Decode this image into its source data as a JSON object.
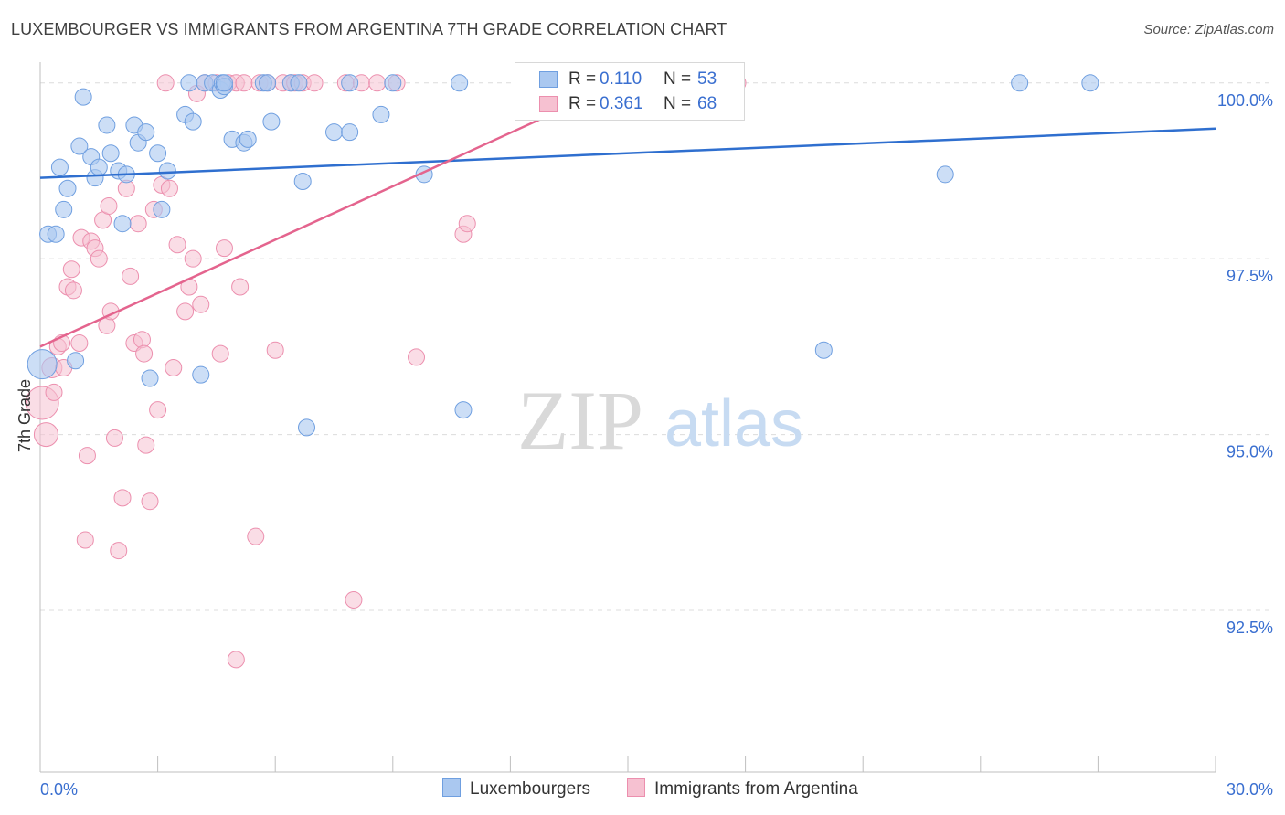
{
  "title": "LUXEMBOURGER VS IMMIGRANTS FROM ARGENTINA 7TH GRADE CORRELATION CHART",
  "source": "Source: ZipAtlas.com",
  "watermark": {
    "zip": "ZIP",
    "atlas": "atlas"
  },
  "colors": {
    "blue_fill": "#aac8f0",
    "blue_stroke": "#6f9fe0",
    "blue_line": "#2f6fcf",
    "pink_fill": "#f6c1d1",
    "pink_stroke": "#ec8fae",
    "pink_line": "#e4648e",
    "tick_label": "#3a6fd0",
    "grid": "#dcdcdc"
  },
  "legend": {
    "rows": [
      {
        "r_label": "R =",
        "r_value": "0.110",
        "n_label": "N =",
        "n_value": "53"
      },
      {
        "r_label": "R =",
        "r_value": "0.361",
        "n_label": "N =",
        "n_value": "68"
      }
    ]
  },
  "bottom_legend": {
    "series1": "Luxembourgers",
    "series2": "Immigrants from Argentina"
  },
  "chart_data": {
    "type": "scatter",
    "title": "LUXEMBOURGER VS IMMIGRANTS FROM ARGENTINA 7TH GRADE CORRELATION CHART",
    "ylabel": "7th Grade",
    "xlabel": "",
    "xlim": [
      0,
      30
    ],
    "ylim": [
      90.2,
      100.4
    ],
    "x_tick_labels": [
      "0.0%",
      "30.0%"
    ],
    "y_ticks": [
      92.5,
      95.0,
      97.5,
      100.0
    ],
    "y_tick_labels": [
      "92.5%",
      "95.0%",
      "97.5%",
      "100.0%"
    ],
    "grid": "horizontal dashed",
    "legend_position": "top-center",
    "series": [
      {
        "name": "Luxembourgers",
        "r": 0.11,
        "n": 53,
        "trend": {
          "x": [
            0,
            30
          ],
          "y": [
            98.65,
            99.35
          ]
        },
        "points": [
          [
            0.05,
            96.0,
            16
          ],
          [
            0.2,
            97.85,
            9
          ],
          [
            0.4,
            97.85,
            9
          ],
          [
            0.5,
            98.8,
            9
          ],
          [
            0.6,
            98.2,
            9
          ],
          [
            0.7,
            98.5,
            9
          ],
          [
            0.9,
            96.05,
            9
          ],
          [
            1.0,
            99.1,
            9
          ],
          [
            1.1,
            99.8,
            9
          ],
          [
            1.3,
            98.95,
            9
          ],
          [
            1.4,
            98.65,
            9
          ],
          [
            1.5,
            98.8,
            9
          ],
          [
            1.7,
            99.4,
            9
          ],
          [
            1.8,
            99.0,
            9
          ],
          [
            2.0,
            98.75,
            9
          ],
          [
            2.1,
            98.0,
            9
          ],
          [
            2.2,
            98.7,
            9
          ],
          [
            2.4,
            99.4,
            9
          ],
          [
            2.5,
            99.15,
            9
          ],
          [
            2.7,
            99.3,
            9
          ],
          [
            2.8,
            95.8,
            9
          ],
          [
            3.0,
            99.0,
            9
          ],
          [
            3.1,
            98.2,
            9
          ],
          [
            3.25,
            98.75,
            9
          ],
          [
            3.7,
            99.55,
            9
          ],
          [
            3.8,
            100.0,
            9
          ],
          [
            3.9,
            99.45,
            9
          ],
          [
            4.1,
            95.85,
            9
          ],
          [
            4.2,
            100.0,
            9
          ],
          [
            4.4,
            100.0,
            9
          ],
          [
            4.6,
            99.9,
            9
          ],
          [
            4.65,
            100.0,
            9
          ],
          [
            4.7,
            99.95,
            9
          ],
          [
            4.7,
            100.0,
            9
          ],
          [
            4.9,
            99.2,
            9
          ],
          [
            5.2,
            99.15,
            9
          ],
          [
            5.3,
            99.2,
            9
          ],
          [
            5.7,
            100.0,
            9
          ],
          [
            5.8,
            100.0,
            9
          ],
          [
            5.9,
            99.45,
            9
          ],
          [
            6.4,
            100.0,
            9
          ],
          [
            6.6,
            100.0,
            9
          ],
          [
            6.7,
            98.6,
            9
          ],
          [
            6.8,
            95.1,
            9
          ],
          [
            7.5,
            99.3,
            9
          ],
          [
            7.9,
            99.3,
            9
          ],
          [
            7.9,
            100.0,
            9
          ],
          [
            8.7,
            99.55,
            9
          ],
          [
            9.0,
            100.0,
            9
          ],
          [
            9.8,
            98.7,
            9
          ],
          [
            10.7,
            100.0,
            9
          ],
          [
            10.8,
            95.35,
            9
          ],
          [
            20.0,
            96.2,
            9
          ],
          [
            23.1,
            98.7,
            9
          ],
          [
            25.0,
            100.0,
            9
          ],
          [
            26.8,
            100.0,
            9
          ]
        ]
      },
      {
        "name": "Immigrants from Argentina",
        "r": 0.361,
        "n": 68,
        "trend": {
          "x": [
            0,
            14.8
          ],
          "y": [
            96.25,
            100.0
          ]
        },
        "points": [
          [
            0.05,
            95.45,
            18
          ],
          [
            0.15,
            95.0,
            13
          ],
          [
            0.3,
            95.95,
            11
          ],
          [
            0.35,
            95.6,
            9
          ],
          [
            0.45,
            96.25,
            9
          ],
          [
            0.55,
            96.3,
            9
          ],
          [
            0.6,
            95.95,
            9
          ],
          [
            0.7,
            97.1,
            9
          ],
          [
            0.8,
            97.35,
            9
          ],
          [
            0.85,
            97.05,
            9
          ],
          [
            1.0,
            96.3,
            9
          ],
          [
            1.05,
            97.8,
            9
          ],
          [
            1.15,
            93.5,
            9
          ],
          [
            1.2,
            94.7,
            9
          ],
          [
            1.3,
            97.75,
            9
          ],
          [
            1.4,
            97.65,
            9
          ],
          [
            1.5,
            97.5,
            9
          ],
          [
            1.6,
            98.05,
            9
          ],
          [
            1.7,
            96.55,
            9
          ],
          [
            1.75,
            98.25,
            9
          ],
          [
            1.8,
            96.75,
            9
          ],
          [
            1.9,
            94.95,
            9
          ],
          [
            2.0,
            93.35,
            9
          ],
          [
            2.1,
            94.1,
            9
          ],
          [
            2.2,
            98.5,
            9
          ],
          [
            2.3,
            97.25,
            9
          ],
          [
            2.4,
            96.3,
            9
          ],
          [
            2.5,
            98.0,
            9
          ],
          [
            2.6,
            96.35,
            9
          ],
          [
            2.65,
            96.15,
            9
          ],
          [
            2.7,
            94.85,
            9
          ],
          [
            2.8,
            94.05,
            9
          ],
          [
            2.9,
            98.2,
            9
          ],
          [
            3.0,
            95.35,
            9
          ],
          [
            3.1,
            98.55,
            9
          ],
          [
            3.2,
            100.0,
            9
          ],
          [
            3.3,
            98.5,
            9
          ],
          [
            3.4,
            95.95,
            9
          ],
          [
            3.5,
            97.7,
            9
          ],
          [
            3.7,
            96.75,
            9
          ],
          [
            3.8,
            97.1,
            9
          ],
          [
            3.9,
            97.5,
            9
          ],
          [
            4.0,
            99.85,
            9
          ],
          [
            4.1,
            96.85,
            9
          ],
          [
            4.2,
            100.0,
            9
          ],
          [
            4.5,
            100.0,
            9
          ],
          [
            4.6,
            96.15,
            9
          ],
          [
            4.7,
            97.65,
            9
          ],
          [
            4.8,
            100.0,
            9
          ],
          [
            5.0,
            100.0,
            9
          ],
          [
            5.1,
            97.1,
            9
          ],
          [
            5.2,
            100.0,
            9
          ],
          [
            5.5,
            93.55,
            9
          ],
          [
            5.6,
            100.0,
            9
          ],
          [
            5.8,
            100.0,
            9
          ],
          [
            6.0,
            96.2,
            9
          ],
          [
            6.2,
            100.0,
            9
          ],
          [
            6.4,
            100.0,
            9
          ],
          [
            6.5,
            100.0,
            9
          ],
          [
            6.7,
            100.0,
            9
          ],
          [
            7.0,
            100.0,
            9
          ],
          [
            7.8,
            100.0,
            9
          ],
          [
            8.0,
            92.65,
            9
          ],
          [
            8.2,
            100.0,
            9
          ],
          [
            8.6,
            100.0,
            9
          ],
          [
            9.1,
            100.0,
            9
          ],
          [
            9.6,
            96.1,
            9
          ],
          [
            10.8,
            97.85,
            9
          ],
          [
            10.9,
            98.0,
            9
          ],
          [
            5.0,
            91.8,
            9
          ],
          [
            17.8,
            100.0,
            9
          ]
        ]
      }
    ]
  }
}
